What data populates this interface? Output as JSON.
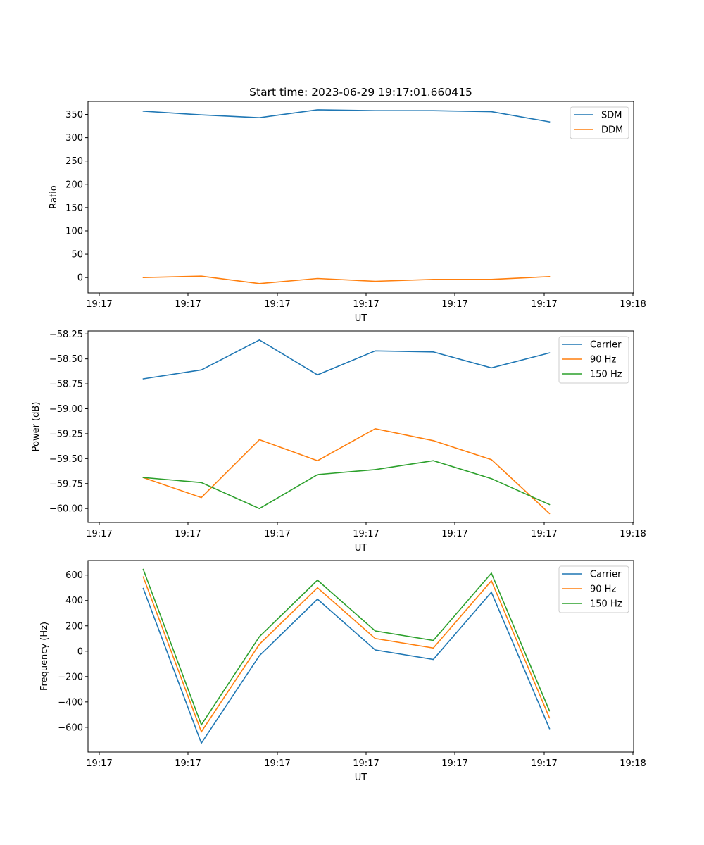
{
  "chart_data": [
    {
      "type": "line",
      "title": "Start time: 2023-06-29 19:17:01.660415",
      "xlabel": "UT",
      "ylabel": "Ratio",
      "xticks": [
        "19:17",
        "19:17",
        "19:17",
        "19:17",
        "19:17",
        "19:17",
        "19:18"
      ],
      "x": [
        1,
        2,
        3,
        4,
        5,
        6,
        7,
        8
      ],
      "yticks": [
        0,
        50,
        100,
        150,
        200,
        250,
        300,
        350
      ],
      "ylim": [
        -33,
        378
      ],
      "legend_position": "top-right",
      "grid": false,
      "series": [
        {
          "name": "SDM",
          "color": "#1f77b4",
          "values": [
            357,
            349,
            343,
            360,
            358,
            358,
            356,
            334
          ]
        },
        {
          "name": "DDM",
          "color": "#ff7f0e",
          "values": [
            0,
            3,
            -13,
            -2,
            -8,
            -4,
            -4,
            2
          ]
        }
      ]
    },
    {
      "type": "line",
      "title": "",
      "xlabel": "UT",
      "ylabel": "Power (dB)",
      "xticks": [
        "19:17",
        "19:17",
        "19:17",
        "19:17",
        "19:17",
        "19:17",
        "19:18"
      ],
      "x": [
        1,
        2,
        3,
        4,
        5,
        6,
        7,
        8
      ],
      "yticks": [
        -60.0,
        -59.75,
        -59.5,
        -59.25,
        -59.0,
        -58.75,
        -58.5,
        -58.25
      ],
      "ytick_labels": [
        "−60.00",
        "−59.75",
        "−59.50",
        "−59.25",
        "−59.00",
        "−58.75",
        "−58.50",
        "−58.25"
      ],
      "ylim": [
        -60.14,
        -58.22
      ],
      "legend_position": "top-right",
      "grid": false,
      "series": [
        {
          "name": "Carrier",
          "color": "#1f77b4",
          "values": [
            -58.7,
            -58.61,
            -58.31,
            -58.66,
            -58.42,
            -58.43,
            -58.59,
            -58.44
          ]
        },
        {
          "name": "90 Hz",
          "color": "#ff7f0e",
          "values": [
            -59.69,
            -59.89,
            -59.31,
            -59.52,
            -59.2,
            -59.32,
            -59.51,
            -60.05
          ]
        },
        {
          "name": "150 Hz",
          "color": "#2ca02c",
          "values": [
            -59.69,
            -59.74,
            -60.0,
            -59.66,
            -59.61,
            -59.52,
            -59.7,
            -59.96
          ]
        }
      ]
    },
    {
      "type": "line",
      "title": "",
      "xlabel": "UT",
      "ylabel": "Frequency (Hz)",
      "xticks": [
        "19:17",
        "19:17",
        "19:17",
        "19:17",
        "19:17",
        "19:17",
        "19:18"
      ],
      "x": [
        1,
        2,
        3,
        4,
        5,
        6,
        7,
        8
      ],
      "yticks": [
        -600,
        -400,
        -200,
        0,
        200,
        400,
        600
      ],
      "ytick_labels": [
        "−600",
        "−400",
        "−200",
        "0",
        "200",
        "400",
        "600"
      ],
      "ylim": [
        -795,
        715
      ],
      "legend_position": "top-right",
      "grid": false,
      "series": [
        {
          "name": "Carrier",
          "color": "#1f77b4",
          "values": [
            495,
            -725,
            -35,
            410,
            10,
            -65,
            465,
            -610
          ]
        },
        {
          "name": "90 Hz",
          "color": "#ff7f0e",
          "values": [
            585,
            -635,
            55,
            500,
            100,
            25,
            555,
            -525
          ]
        },
        {
          "name": "150 Hz",
          "color": "#2ca02c",
          "values": [
            645,
            -580,
            115,
            560,
            160,
            85,
            615,
            -470
          ]
        }
      ]
    }
  ]
}
